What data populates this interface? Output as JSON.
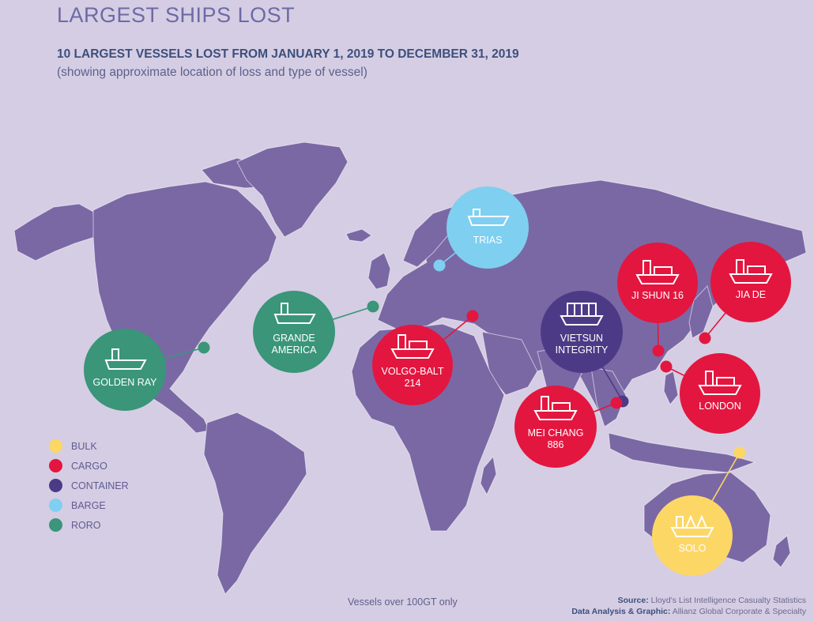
{
  "title": "LARGEST SHIPS LOST",
  "subtitle": "10 LARGEST VESSELS LOST FROM JANUARY 1, 2019 TO DECEMBER 31, 2019",
  "subtitle2": "(showing approximate location of loss and type of vessel)",
  "colors": {
    "bulk": "#fcd766",
    "cargo": "#e3163f",
    "container": "#4d3a87",
    "barge": "#7fcff1",
    "roro": "#3a9579",
    "land": "#7a68a5",
    "background": "#d5cde3"
  },
  "legend": [
    {
      "type": "bulk",
      "label": "BULK"
    },
    {
      "type": "cargo",
      "label": "CARGO"
    },
    {
      "type": "container",
      "label": "CONTAINER"
    },
    {
      "type": "barge",
      "label": "BARGE"
    },
    {
      "type": "roro",
      "label": "RORO"
    }
  ],
  "vessels": [
    {
      "name": "GOLDEN RAY",
      "lines": [
        "GOLDEN RAY"
      ],
      "type": "roro",
      "icon": "roro-ship-icon"
    },
    {
      "name": "GRANDE AMERICA",
      "lines": [
        "GRANDE",
        "AMERICA"
      ],
      "type": "roro",
      "icon": "roro-ship-icon"
    },
    {
      "name": "TRIAS",
      "lines": [
        "TRIAS"
      ],
      "type": "barge",
      "icon": "barge-icon"
    },
    {
      "name": "VOLGO-BALT 214",
      "lines": [
        "VOLGO-BALT",
        "214"
      ],
      "type": "cargo",
      "icon": "cargo-ship-icon"
    },
    {
      "name": "VIETSUN INTEGRITY",
      "lines": [
        "VIETSUN",
        "INTEGRITY"
      ],
      "type": "container",
      "icon": "container-stack-icon"
    },
    {
      "name": "MEI CHANG 886",
      "lines": [
        "MEI CHANG",
        "886"
      ],
      "type": "cargo",
      "icon": "cargo-ship-icon"
    },
    {
      "name": "JI SHUN 16",
      "lines": [
        "JI SHUN 16"
      ],
      "type": "cargo",
      "icon": "cargo-ship-icon"
    },
    {
      "name": "JIA DE",
      "lines": [
        "JIA DE"
      ],
      "type": "cargo",
      "icon": "cargo-ship-icon"
    },
    {
      "name": "LONDON",
      "lines": [
        "LONDON"
      ],
      "type": "cargo",
      "icon": "cargo-ship-icon"
    },
    {
      "name": "SOLO",
      "lines": [
        "SOLO"
      ],
      "type": "bulk",
      "icon": "bulk-carrier-icon"
    }
  ],
  "note": "Vessels over 100GT only",
  "source": {
    "label": "Source:",
    "text": "Lloyd's List Intelligence Casualty Statistics",
    "label2": "Data Analysis & Graphic:",
    "text2": "Allianz Global Corporate & Specialty"
  }
}
